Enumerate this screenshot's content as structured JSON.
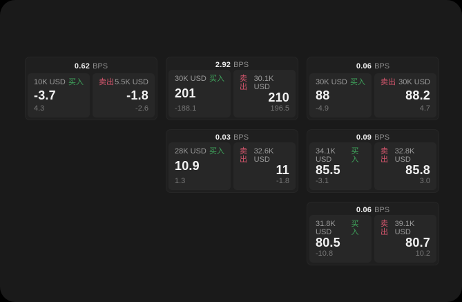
{
  "labels": {
    "buy": "买入",
    "sell": "卖出",
    "bps_unit": "BPS"
  },
  "colors": {
    "buy": "#3fa55c",
    "sell": "#d5566d",
    "panel_bg": "#1a1a1a",
    "card_bg": "#1f1f1f",
    "pane_bg": "#272727",
    "price_text": "#f2f2f2",
    "muted_text": "#9c9c9c"
  },
  "cards": [
    {
      "bps": "0.62",
      "buy_size": "10K USD",
      "buy_price": "-3.7",
      "buy_delta": "4.3",
      "sell_size": "5.5K USD",
      "sell_price": "-1.8",
      "sell_delta": "-2.6"
    },
    {
      "bps": "2.92",
      "buy_size": "30K USD",
      "buy_price": "201",
      "buy_delta": "-188.1",
      "sell_size": "30.1K USD",
      "sell_price": "210",
      "sell_delta": "196.5"
    },
    {
      "bps": "0.06",
      "buy_size": "30K USD",
      "buy_price": "88",
      "buy_delta": "-4.9",
      "sell_size": "30K USD",
      "sell_price": "88.2",
      "sell_delta": "4.7"
    },
    {
      "bps": "0.03",
      "buy_size": "28K USD",
      "buy_price": "10.9",
      "buy_delta": "1.3",
      "sell_size": "32.6K USD",
      "sell_price": "11",
      "sell_delta": "-1.8"
    },
    {
      "bps": "0.09",
      "buy_size": "34.1K USD",
      "buy_price": "85.5",
      "buy_delta": "-3.1",
      "sell_size": "32.8K USD",
      "sell_price": "85.8",
      "sell_delta": "3.0"
    },
    {
      "bps": "0.06",
      "buy_size": "31.8K USD",
      "buy_price": "80.5",
      "buy_delta": "-10.8",
      "sell_size": "39.1K USD",
      "sell_price": "80.7",
      "sell_delta": "10.2"
    }
  ]
}
